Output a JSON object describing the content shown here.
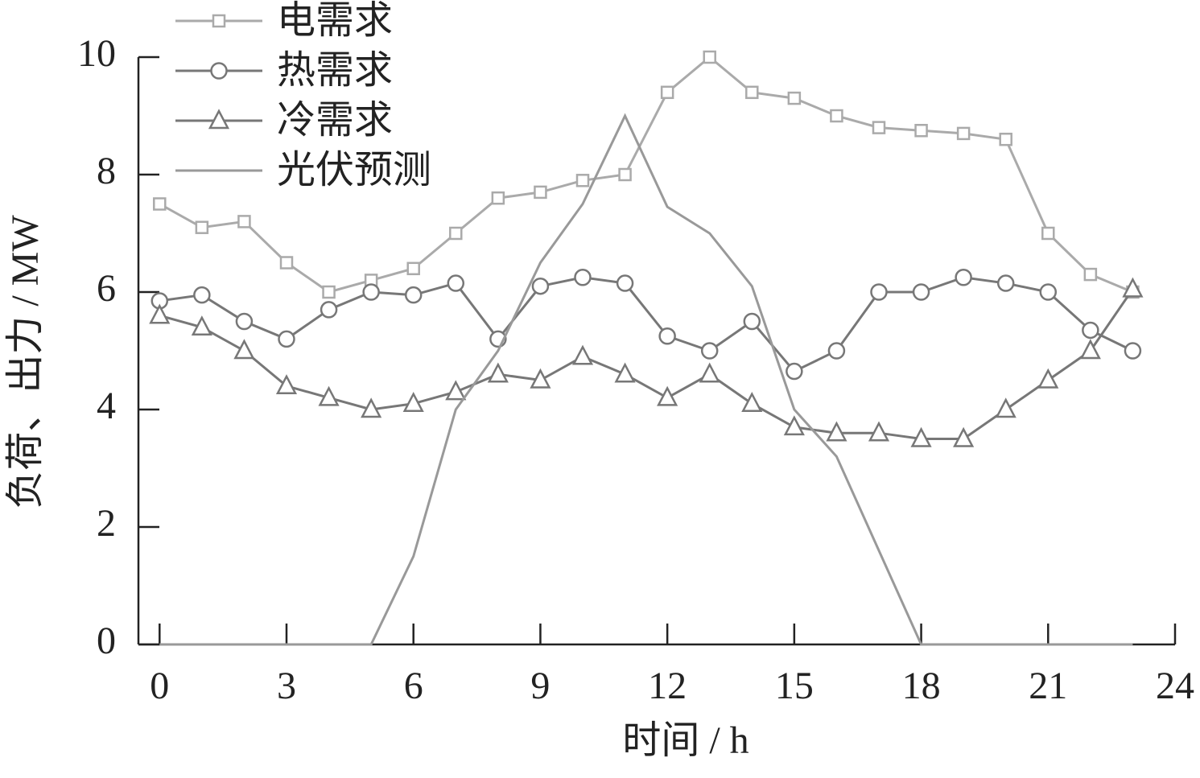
{
  "chart_data": {
    "type": "line",
    "x_label": "时间 / h",
    "y_label": "负荷、出力 / MW",
    "x": [
      0,
      1,
      2,
      3,
      4,
      5,
      6,
      7,
      8,
      9,
      10,
      11,
      12,
      13,
      14,
      15,
      16,
      17,
      18,
      19,
      20,
      21,
      22,
      23
    ],
    "series": [
      {
        "name": "电需求",
        "color": "#aaaaaa",
        "marker": "square",
        "values": [
          7.5,
          7.1,
          7.2,
          6.5,
          6.0,
          6.2,
          6.4,
          7.0,
          7.6,
          7.7,
          7.9,
          8.0,
          9.4,
          10.0,
          9.4,
          9.3,
          9.0,
          8.8,
          8.75,
          8.7,
          8.6,
          7.0,
          6.3,
          6.0
        ]
      },
      {
        "name": "热需求",
        "color": "#777777",
        "marker": "circle",
        "values": [
          5.85,
          5.95,
          5.5,
          5.2,
          5.7,
          6.0,
          5.95,
          6.15,
          5.2,
          6.1,
          6.25,
          6.15,
          5.25,
          5.0,
          5.5,
          4.65,
          5.0,
          6.0,
          6.0,
          6.25,
          6.15,
          6.0,
          5.35,
          5.0
        ]
      },
      {
        "name": "冷需求",
        "color": "#777777",
        "marker": "triangle",
        "values": [
          5.6,
          5.4,
          5.0,
          4.4,
          4.2,
          4.0,
          4.1,
          4.3,
          4.6,
          4.5,
          4.9,
          4.6,
          4.2,
          4.6,
          4.1,
          3.7,
          3.6,
          3.6,
          3.5,
          3.5,
          4.0,
          4.5,
          5.0,
          6.05
        ]
      },
      {
        "name": "光伏预测",
        "color": "#999999",
        "marker": "none",
        "values": [
          0,
          0,
          0,
          0,
          0,
          0,
          1.5,
          4.0,
          5.0,
          6.5,
          7.5,
          9.0,
          7.45,
          7.0,
          6.1,
          4.0,
          3.2,
          1.6,
          0,
          0,
          0,
          0,
          0,
          0
        ]
      }
    ],
    "xlim": [
      -0.5,
      24
    ],
    "ylim": [
      0,
      10
    ],
    "xticks": [
      0,
      3,
      6,
      9,
      12,
      15,
      18,
      21,
      24
    ],
    "yticks": [
      0,
      2,
      4,
      6,
      8,
      10
    ],
    "legend": "upper-left"
  }
}
